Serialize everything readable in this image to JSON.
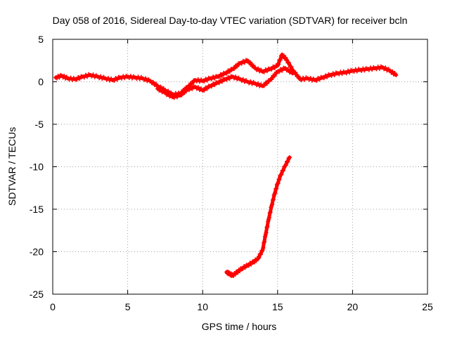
{
  "chart_data": {
    "type": "scatter",
    "title": "Day 058 of 2016, Sidereal Day-to-day VTEC variation (SDTVAR) for receiver bcln",
    "xlabel": "GPS time / hours",
    "ylabel": "SDTVAR / TECUs",
    "xlim": [
      0,
      25
    ],
    "ylim": [
      -25,
      5
    ],
    "xticks": [
      0,
      5,
      10,
      15,
      20,
      25
    ],
    "yticks": [
      5,
      0,
      -5,
      -10,
      -15,
      -20,
      -25
    ],
    "grid": true,
    "marker": "+",
    "color": "#ff0000",
    "series": [
      {
        "name": "main",
        "x": [
          0.2,
          0.6,
          1.0,
          1.5,
          2.0,
          2.5,
          3.0,
          3.5,
          4.0,
          4.5,
          5.0,
          5.5,
          6.0,
          6.5,
          7.0,
          7.5,
          8.0,
          8.5,
          9.0,
          9.5,
          10.0,
          10.5,
          11.0,
          11.5,
          12.0,
          12.5,
          13.0,
          13.5,
          14.0,
          14.5,
          15.0,
          15.3,
          15.6,
          16.0,
          16.5,
          17.0,
          17.5,
          18.0,
          18.5,
          19.0,
          19.5,
          20.0,
          20.5,
          21.0,
          21.5,
          22.0,
          22.5,
          22.9
        ],
        "y": [
          0.5,
          0.7,
          0.4,
          0.3,
          0.6,
          0.8,
          0.6,
          0.4,
          0.2,
          0.5,
          0.6,
          0.5,
          0.4,
          0.1,
          -0.5,
          -1.0,
          -1.5,
          -1.4,
          -0.6,
          0.2,
          0.1,
          0.4,
          0.6,
          1.0,
          1.5,
          2.2,
          2.5,
          1.6,
          1.2,
          1.5,
          1.9,
          3.2,
          2.6,
          1.4,
          0.3,
          0.4,
          0.2,
          0.5,
          0.8,
          1.0,
          1.1,
          1.3,
          1.4,
          1.5,
          1.6,
          1.7,
          1.3,
          0.8
        ]
      },
      {
        "name": "lower",
        "x": [
          7.0,
          7.5,
          8.0,
          8.5,
          9.0,
          9.5,
          10.0,
          10.5,
          11.0,
          11.5,
          12.0,
          12.5,
          13.0,
          13.5,
          14.0,
          14.5,
          15.0,
          15.5,
          16.0
        ],
        "y": [
          -0.8,
          -1.3,
          -1.8,
          -1.6,
          -0.9,
          -0.6,
          -1.0,
          -0.5,
          -0.1,
          0.3,
          0.6,
          0.3,
          0.0,
          -0.2,
          -0.5,
          0.2,
          1.2,
          1.6,
          1.0
        ]
      },
      {
        "name": "descent",
        "x": [
          11.6,
          11.8,
          12.0,
          12.3,
          12.6,
          13.0,
          13.4,
          13.7,
          14.0,
          14.2,
          14.4,
          14.6,
          14.8,
          15.0,
          15.2,
          15.5,
          15.8
        ],
        "y": [
          -22.4,
          -22.6,
          -22.8,
          -22.4,
          -22.0,
          -21.6,
          -21.2,
          -20.8,
          -19.8,
          -18.0,
          -16.2,
          -14.6,
          -13.2,
          -12.0,
          -11.0,
          -9.9,
          -8.9
        ]
      }
    ]
  }
}
